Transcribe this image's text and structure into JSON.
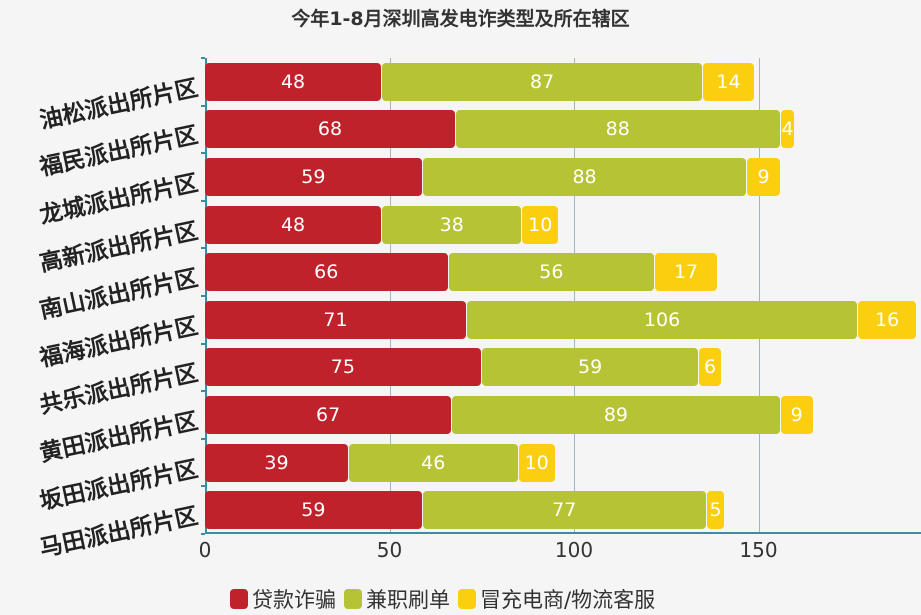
{
  "title": "今年1-8月深圳高发电诈类型及所在辖区",
  "legend": [
    {
      "label": "贷款诈骗",
      "color": "#c0222b"
    },
    {
      "label": "兼职刷单",
      "color": "#b5c334"
    },
    {
      "label": "冒充电商/物流客服",
      "color": "#fcce10"
    }
  ],
  "xticks": [
    "0",
    "50",
    "100",
    "150"
  ],
  "chart_data": {
    "type": "bar",
    "orientation": "horizontal",
    "stacked": true,
    "title": "今年1-8月深圳高发电诈类型及所在辖区",
    "categories": [
      "油松派出所片区",
      "福民派出所片区",
      "龙城派出所片区",
      "高新派出所片区",
      "南山派出所片区",
      "福海派出所片区",
      "共乐派出所片区",
      "黄田派出所片区",
      "坂田派出所片区",
      "马田派出所片区"
    ],
    "series": [
      {
        "name": "贷款诈骗",
        "color": "#c0222b",
        "values": [
          48,
          68,
          59,
          48,
          66,
          71,
          75,
          67,
          39,
          59
        ]
      },
      {
        "name": "兼职刷单",
        "color": "#b5c334",
        "values": [
          87,
          88,
          88,
          38,
          56,
          106,
          59,
          89,
          46,
          77
        ]
      },
      {
        "name": "冒充电商/物流客服",
        "color": "#fcce10",
        "values": [
          14,
          4,
          9,
          10,
          17,
          16,
          6,
          9,
          10,
          5
        ]
      }
    ],
    "xlabel": "",
    "ylabel": "",
    "xlim": [
      0,
      194
    ],
    "xticks": [
      0,
      50,
      100,
      150
    ],
    "grid": true,
    "legend_position": "bottom"
  }
}
